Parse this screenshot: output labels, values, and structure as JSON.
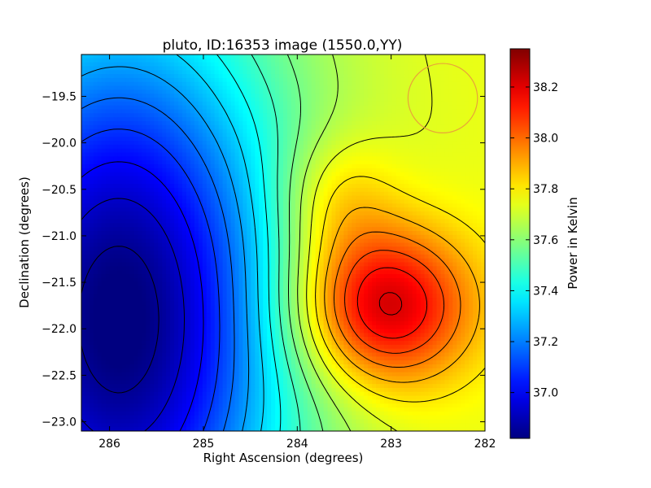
{
  "chart_data": {
    "type": "heatmap",
    "title": "pluto, ID:16353 image (1550.0,YY)",
    "xlabel": "Right Ascension (degrees)",
    "ylabel": "Declination (degrees)",
    "colorbar_label": "Power in Kelvin",
    "colormap": "jet",
    "xlim": [
      286.3,
      282.0
    ],
    "ylim": [
      -23.1,
      -19.05
    ],
    "xticks": [
      286,
      285,
      284,
      283,
      282
    ],
    "yticks": [
      -23.0,
      -22.5,
      -22.0,
      -21.5,
      -21.0,
      -20.5,
      -20.0,
      -19.5
    ],
    "ytick_labels": [
      "−23.0",
      "−22.5",
      "−22.0",
      "−21.5",
      "−21.0",
      "−20.5",
      "−20.0",
      "−19.5"
    ],
    "clim": [
      36.82,
      38.35
    ],
    "colorbar_ticks": [
      37.0,
      37.2,
      37.4,
      37.6,
      37.8,
      38.0,
      38.2
    ],
    "colorbar_tick_labels": [
      "37.0",
      "37.2",
      "37.4",
      "37.6",
      "37.8",
      "38.0",
      "38.2"
    ],
    "contour_color": "#000000",
    "beam_circle": {
      "ra": 282.45,
      "dec": -19.52,
      "radius_deg": 0.37,
      "color": "#e8a33a"
    },
    "field_model": {
      "background": 37.75,
      "peak": {
        "ra": 283.1,
        "dec": -21.75,
        "amplitude": 0.55,
        "sigma_ra": 0.65,
        "sigma_dec": 0.6
      },
      "ridge": {
        "ra": 283.6,
        "dec": -20.6,
        "amplitude": 0.18,
        "sigma_ra": 0.45,
        "sigma_dec": 0.5
      },
      "cold": {
        "ra": 285.9,
        "dec": -21.9,
        "amplitude": -0.95,
        "sigma_ra": 1.3,
        "sigma_dec": 2.4
      },
      "grid_size": [
        100,
        96
      ]
    }
  }
}
